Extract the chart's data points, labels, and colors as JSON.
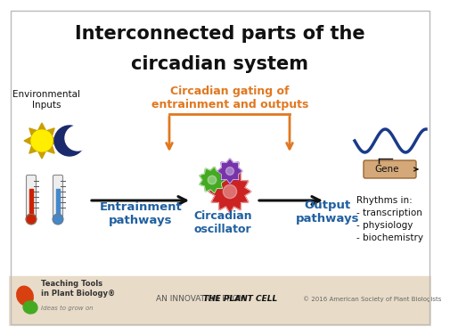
{
  "title_line1": "Interconnected parts of the",
  "title_line2": "circadian system",
  "title_color": "#111111",
  "title_fontsize": 15,
  "bg_color": "#ffffff",
  "footer_bg": "#e8dcc8",
  "env_inputs_label": "Environmental\nInputs",
  "entrainment_label": "Entrainment\npathways",
  "circadian_osc_label": "Circadian\noscillator",
  "output_label": "Output\npathways",
  "gating_label": "Circadian gating of\nentrainment and outputs",
  "rhythms_label": "Rhythms in:\n- transcription\n- physiology\n- biochemistry",
  "gene_label": "Gene",
  "footer_text1": "AN INNOVATION FROM ",
  "footer_text2": "THE PLANT CELL",
  "footer_text3": "© 2016 American Society of Plant Biologists",
  "teaching_tools_text": "Teaching Tools\nin Plant Biology®",
  "ideas_text": "Ideas to grow on",
  "orange_color": "#E07820",
  "blue_color": "#2060A0",
  "arrow_color": "#111111",
  "gene_box_color": "#D4A878",
  "wave_color": "#1a3a8a",
  "sun_yellow": "#FFEE00",
  "sun_spike": "#C8A000",
  "moon_color": "#1a2a6c",
  "red_thermo": "#CC2200",
  "blue_thermo": "#4488CC"
}
